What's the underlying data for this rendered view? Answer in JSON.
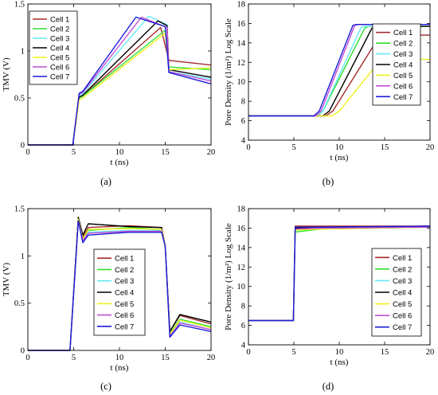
{
  "series_colors": [
    "#a52a2a",
    "#2ee02e",
    "#66e8f5",
    "#000000",
    "#f0f020",
    "#c24dd6",
    "#1c1cd8"
  ],
  "chart_data": [
    {
      "type": "line",
      "panel_label": "(a)",
      "xlabel": "t (ns)",
      "ylabel": "TMV (V)",
      "xlim": [
        0,
        20
      ],
      "ylim": [
        0,
        1.5
      ],
      "xticks": [
        "0",
        "5",
        "10",
        "15",
        "20"
      ],
      "yticks": [
        "0",
        "0.5",
        "1",
        "1.5"
      ],
      "legend_position": "top-left",
      "series": [
        {
          "name": "Cell 1",
          "x": [
            0,
            4.9,
            5.6,
            6,
            14.5,
            15.4,
            20
          ],
          "y": [
            0,
            0,
            0.5,
            0.52,
            1.25,
            0.9,
            0.85
          ]
        },
        {
          "name": "Cell 2",
          "x": [
            0,
            4.9,
            5.6,
            6,
            15,
            15.4,
            20
          ],
          "y": [
            0,
            0,
            0.5,
            0.52,
            1.22,
            0.83,
            0.8
          ]
        },
        {
          "name": "Cell 3",
          "x": [
            0,
            4.9,
            5.6,
            6,
            13.2,
            15.2,
            15.4,
            20
          ],
          "y": [
            0,
            0,
            0.53,
            0.55,
            1.37,
            1.28,
            0.78,
            0.7
          ]
        },
        {
          "name": "Cell 4",
          "x": [
            0,
            4.9,
            5.6,
            6,
            14.2,
            15.2,
            15.4,
            20
          ],
          "y": [
            0,
            0,
            0.51,
            0.53,
            1.32,
            1.27,
            0.8,
            0.72
          ]
        },
        {
          "name": "Cell 5",
          "x": [
            0,
            4.9,
            5.6,
            6,
            15,
            15.4,
            20
          ],
          "y": [
            0,
            0,
            0.48,
            0.5,
            1.19,
            0.8,
            0.82
          ]
        },
        {
          "name": "Cell 6",
          "x": [
            0,
            4.9,
            5.6,
            6,
            12.4,
            15.2,
            15.4,
            20
          ],
          "y": [
            0,
            0,
            0.54,
            0.56,
            1.36,
            1.25,
            0.78,
            0.68
          ]
        },
        {
          "name": "Cell 7",
          "x": [
            0,
            4.9,
            5.6,
            6,
            11.8,
            15,
            15.4,
            20
          ],
          "y": [
            0,
            0,
            0.55,
            0.57,
            1.36,
            1.26,
            0.77,
            0.65
          ]
        }
      ]
    },
    {
      "type": "line",
      "panel_label": "(b)",
      "xlabel": "t (ns)",
      "ylabel": "Pore Density (1/m²) Log Scale",
      "xlim": [
        0,
        20
      ],
      "ylim": [
        4,
        18
      ],
      "xticks": [
        "0",
        "5",
        "10",
        "15",
        "20"
      ],
      "yticks": [
        "4",
        "6",
        "8",
        "10",
        "12",
        "14",
        "16",
        "18"
      ],
      "legend_position": "right",
      "series": [
        {
          "name": "Cell 1",
          "x": [
            0,
            8.5,
            9.3,
            14.5,
            20
          ],
          "y": [
            6.5,
            6.5,
            7,
            14.8,
            14.8
          ]
        },
        {
          "name": "Cell 2",
          "x": [
            0,
            7.6,
            8.2,
            12.8,
            13.2,
            20
          ],
          "y": [
            6.5,
            6.5,
            7,
            15.5,
            15.7,
            15.7
          ]
        },
        {
          "name": "Cell 3",
          "x": [
            0,
            7.6,
            8.2,
            12.4,
            12.8,
            20
          ],
          "y": [
            6.5,
            6.5,
            7,
            15.6,
            15.7,
            15.7
          ]
        },
        {
          "name": "Cell 4",
          "x": [
            0,
            8.2,
            8.9,
            13.6,
            14,
            20
          ],
          "y": [
            6.5,
            6.5,
            7,
            15.5,
            15.7,
            15.7
          ]
        },
        {
          "name": "Cell 5",
          "x": [
            0,
            9.2,
            10,
            14.6,
            20
          ],
          "y": [
            6.5,
            6.5,
            7,
            12.3,
            12.3
          ]
        },
        {
          "name": "Cell 6",
          "x": [
            0,
            7.4,
            8,
            11.7,
            12.1,
            20
          ],
          "y": [
            6.5,
            6.5,
            7,
            15.8,
            15.9,
            15.9
          ]
        },
        {
          "name": "Cell 7",
          "x": [
            0,
            7.2,
            7.8,
            11.5,
            11.9,
            20
          ],
          "y": [
            6.5,
            6.5,
            7,
            15.8,
            15.9,
            15.9
          ]
        }
      ]
    },
    {
      "type": "line",
      "panel_label": "(c)",
      "xlabel": "t (ns)",
      "ylabel": "TMV (V)",
      "xlim": [
        0,
        20
      ],
      "ylim": [
        0,
        1.5
      ],
      "xticks": [
        "0",
        "5",
        "10",
        "15",
        "20"
      ],
      "yticks": [
        "0",
        "0.5",
        "1",
        "1.5"
      ],
      "legend_position": "bottom-right",
      "series": [
        {
          "name": "Cell 1",
          "x": [
            0,
            4.6,
            5.5,
            6,
            6.6,
            11,
            14.6,
            15,
            15.5,
            16.6,
            20
          ],
          "y": [
            0,
            0,
            1.4,
            1.2,
            1.3,
            1.32,
            1.3,
            1.1,
            0.2,
            0.37,
            0.28
          ]
        },
        {
          "name": "Cell 2",
          "x": [
            0,
            4.6,
            5.5,
            6,
            6.6,
            11,
            14.6,
            15,
            15.5,
            16.6,
            20
          ],
          "y": [
            0,
            0,
            1.38,
            1.17,
            1.27,
            1.3,
            1.28,
            1.1,
            0.18,
            0.33,
            0.25
          ]
        },
        {
          "name": "Cell 3",
          "x": [
            0,
            4.6,
            5.5,
            6,
            6.6,
            11,
            14.6,
            15,
            15.5,
            16.6,
            20
          ],
          "y": [
            0,
            0,
            1.38,
            1.16,
            1.25,
            1.27,
            1.27,
            1.1,
            0.15,
            0.3,
            0.22
          ]
        },
        {
          "name": "Cell 4",
          "x": [
            0,
            4.6,
            5.5,
            6,
            6.6,
            11,
            14.6,
            15,
            15.5,
            16.6,
            20
          ],
          "y": [
            0,
            0,
            1.41,
            1.22,
            1.34,
            1.31,
            1.3,
            1.1,
            0.2,
            0.38,
            0.3
          ]
        },
        {
          "name": "Cell 5",
          "x": [
            0,
            4.6,
            5.5,
            6,
            6.6,
            11,
            14.6,
            15,
            15.5,
            16.6,
            20
          ],
          "y": [
            0,
            0,
            1.39,
            1.18,
            1.28,
            1.29,
            1.28,
            1.1,
            0.17,
            0.32,
            0.24
          ]
        },
        {
          "name": "Cell 6",
          "x": [
            0,
            4.6,
            5.5,
            6,
            6.6,
            11,
            14.6,
            15,
            15.5,
            16.6,
            20
          ],
          "y": [
            0,
            0,
            1.37,
            1.16,
            1.24,
            1.26,
            1.26,
            1.1,
            0.15,
            0.29,
            0.22
          ]
        },
        {
          "name": "Cell 7",
          "x": [
            0,
            4.6,
            5.5,
            6,
            6.6,
            11,
            14.6,
            15,
            15.5,
            16.6,
            20
          ],
          "y": [
            0,
            0,
            1.37,
            1.14,
            1.22,
            1.25,
            1.25,
            1.1,
            0.14,
            0.27,
            0.2
          ]
        }
      ]
    },
    {
      "type": "line",
      "panel_label": "(d)",
      "xlabel": "t (ns)",
      "ylabel": "Pore Density (1/m²) Log Scale",
      "xlim": [
        0,
        20
      ],
      "ylim": [
        4,
        18
      ],
      "xticks": [
        "0",
        "5",
        "10",
        "15",
        "20"
      ],
      "yticks": [
        "4",
        "6",
        "8",
        "10",
        "12",
        "14",
        "16",
        "18"
      ],
      "legend_position": "bottom-right",
      "series": [
        {
          "name": "Cell 1",
          "x": [
            0,
            4.95,
            5.15,
            8,
            20
          ],
          "y": [
            6.5,
            6.5,
            16.2,
            16.2,
            16.2
          ]
        },
        {
          "name": "Cell 2",
          "x": [
            0,
            4.95,
            5.15,
            8,
            20
          ],
          "y": [
            6.5,
            6.5,
            15.6,
            15.9,
            16.1
          ]
        },
        {
          "name": "Cell 3",
          "x": [
            0,
            4.95,
            5.15,
            8,
            20
          ],
          "y": [
            6.5,
            6.5,
            15.8,
            16,
            16.1
          ]
        },
        {
          "name": "Cell 4",
          "x": [
            0,
            4.95,
            5.15,
            8,
            20
          ],
          "y": [
            6.5,
            6.5,
            16,
            16.1,
            16.2
          ]
        },
        {
          "name": "Cell 5",
          "x": [
            0,
            4.95,
            5.15,
            8,
            20
          ],
          "y": [
            6.5,
            6.5,
            15.8,
            15.9,
            16.1
          ]
        },
        {
          "name": "Cell 6",
          "x": [
            0,
            4.95,
            5.15,
            8,
            20
          ],
          "y": [
            6.5,
            6.5,
            15.9,
            16,
            16.1
          ]
        },
        {
          "name": "Cell 7",
          "x": [
            0,
            4.95,
            5.15,
            8,
            20
          ],
          "y": [
            6.5,
            6.5,
            16.1,
            16.1,
            16.2
          ]
        }
      ]
    }
  ]
}
